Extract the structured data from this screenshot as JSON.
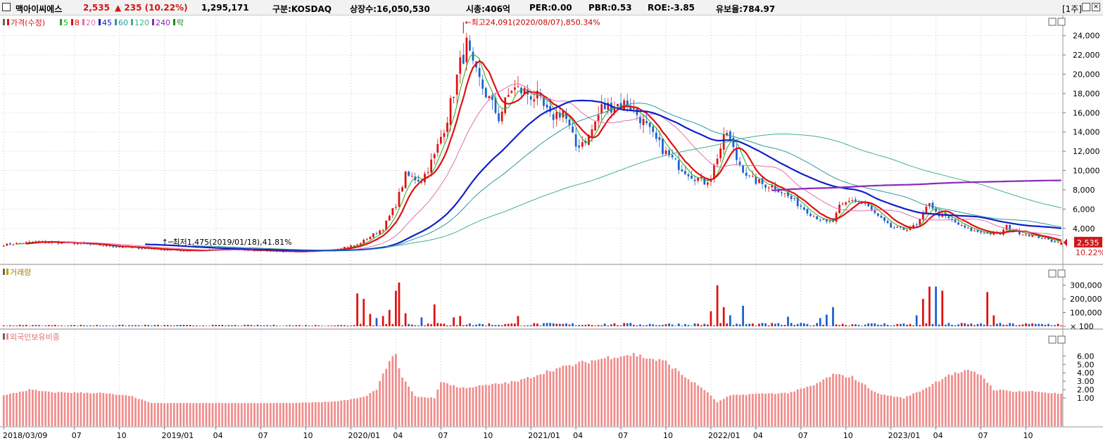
{
  "header": {
    "name": "맥아이씨에스",
    "price": "2,535",
    "change": "▲ 235 (10.22%)",
    "volume": "1,295,171",
    "market": "구분:KOSDAQ",
    "shares": "상장수:16,050,530",
    "mcap": "시총:406억",
    "per": "PER:0.00",
    "pbr": "PBR:0.53",
    "roe": "ROE:-3.85",
    "reserve": "유보율:784.97",
    "period": "[1주]"
  },
  "legend": {
    "price": "가격(수정)",
    "ma": [
      "5",
      "8",
      "20",
      "45",
      "60",
      "120",
      "240"
    ],
    "fall": "락",
    "volume": "거래량",
    "foreign": "외국인보유비중"
  },
  "annotations": {
    "high": "최고24,091(2020/08/07),850.34%",
    "low": "최저1,475(2019/01/18),41.81%"
  },
  "last": {
    "price": "2,535",
    "pct": "10.22%"
  },
  "colors": {
    "up": "#e01010",
    "down": "#1a5fd0",
    "ma5": "#22a822",
    "ma8": "#e01010",
    "ma20": "#e070b0",
    "ma45": "#1020c8",
    "ma60": "#2a9aa0",
    "ma120": "#40b090",
    "ma240": "#8a2ab8",
    "foreign": "#f08c8c",
    "grid": "#c8c8c8"
  },
  "chart_data": [
    {
      "type": "candlestick",
      "title": "맥아이씨에스",
      "y_ticks": [
        4000,
        6000,
        8000,
        10000,
        12000,
        14000,
        16000,
        18000,
        20000,
        22000,
        24000
      ],
      "y_tick_labels": [
        "4,000",
        "6,000",
        "8,000",
        "10,000",
        "12,000",
        "14,000",
        "16,000",
        "18,000",
        "20,000",
        "22,000",
        "24,000"
      ],
      "ylim": [
        700,
        25800
      ],
      "x_labels": [
        "2018/03/09",
        "07",
        "10",
        "2019/01",
        "04",
        "07",
        "10",
        "2020/01",
        "04",
        "07",
        "10",
        "2021/01",
        "04",
        "07",
        "10",
        "2022/01",
        "04",
        "07",
        "10",
        "2023/01",
        "04",
        "07",
        "10"
      ],
      "close_trend": [
        [
          0,
          2300
        ],
        [
          10,
          2600
        ],
        [
          20,
          2500
        ],
        [
          40,
          2000
        ],
        [
          55,
          1700
        ],
        [
          70,
          1800
        ],
        [
          90,
          1600
        ],
        [
          100,
          1700
        ],
        [
          110,
          2300
        ],
        [
          118,
          4000
        ],
        [
          122,
          6500
        ],
        [
          125,
          9500
        ],
        [
          130,
          9000
        ],
        [
          134,
          11500
        ],
        [
          138,
          15500
        ],
        [
          142,
          21000
        ],
        [
          144,
          23000
        ],
        [
          146,
          20500
        ],
        [
          150,
          18000
        ],
        [
          154,
          15500
        ],
        [
          158,
          18500
        ],
        [
          162,
          18200
        ],
        [
          166,
          17500
        ],
        [
          170,
          15500
        ],
        [
          174,
          16200
        ],
        [
          178,
          12500
        ],
        [
          182,
          13500
        ],
        [
          186,
          16500
        ],
        [
          190,
          16800
        ],
        [
          194,
          17000
        ],
        [
          198,
          15500
        ],
        [
          202,
          13500
        ],
        [
          206,
          11800
        ],
        [
          210,
          10500
        ],
        [
          214,
          9500
        ],
        [
          218,
          8800
        ],
        [
          220,
          9300
        ],
        [
          222,
          11500
        ],
        [
          225,
          14000
        ],
        [
          228,
          11200
        ],
        [
          232,
          9200
        ],
        [
          236,
          8600
        ],
        [
          240,
          8300
        ],
        [
          244,
          7300
        ],
        [
          248,
          6300
        ],
        [
          252,
          5300
        ],
        [
          256,
          4600
        ],
        [
          258,
          4700
        ],
        [
          260,
          6200
        ],
        [
          264,
          7000
        ],
        [
          268,
          6500
        ],
        [
          272,
          5200
        ],
        [
          276,
          4100
        ],
        [
          280,
          3900
        ],
        [
          284,
          4300
        ],
        [
          286,
          5400
        ],
        [
          288,
          6800
        ],
        [
          290,
          5600
        ],
        [
          294,
          5000
        ],
        [
          298,
          4200
        ],
        [
          302,
          3700
        ],
        [
          306,
          3500
        ],
        [
          310,
          3400
        ],
        [
          312,
          4200
        ],
        [
          314,
          3700
        ],
        [
          318,
          3400
        ],
        [
          322,
          3100
        ],
        [
          326,
          2700
        ],
        [
          329,
          2535
        ]
      ],
      "high": {
        "value": 24091,
        "date": "2020/08/07"
      },
      "low": {
        "value": 1475,
        "date": "2019/01/18"
      },
      "last_close": 2535,
      "moving_averages": [
        "5",
        "8",
        "20",
        "45",
        "60",
        "120",
        "240"
      ]
    },
    {
      "type": "bar",
      "title": "거래량",
      "y_ticks": [
        100,
        100000,
        200000,
        300000
      ],
      "y_tick_labels": [
        "× 100",
        "100,000",
        "200,000",
        "300,000"
      ],
      "ylim": [
        0,
        360000
      ],
      "spikes": [
        [
          110,
          240000
        ],
        [
          112,
          200000
        ],
        [
          114,
          90000
        ],
        [
          116,
          60000
        ],
        [
          118,
          75000
        ],
        [
          120,
          120000
        ],
        [
          122,
          260000
        ],
        [
          123,
          320000
        ],
        [
          125,
          95000
        ],
        [
          130,
          65000
        ],
        [
          134,
          160000
        ],
        [
          140,
          65000
        ],
        [
          142,
          75000
        ],
        [
          160,
          75000
        ],
        [
          220,
          110000
        ],
        [
          222,
          300000
        ],
        [
          224,
          140000
        ],
        [
          226,
          80000
        ],
        [
          230,
          150000
        ],
        [
          244,
          70000
        ],
        [
          254,
          60000
        ],
        [
          256,
          85000
        ],
        [
          258,
          140000
        ],
        [
          284,
          80000
        ],
        [
          286,
          200000
        ],
        [
          288,
          290000
        ],
        [
          290,
          290000
        ],
        [
          292,
          260000
        ],
        [
          306,
          250000
        ],
        [
          308,
          80000
        ]
      ]
    },
    {
      "type": "bar",
      "title": "외국인보유비중",
      "y_ticks": [
        1,
        2,
        3,
        4,
        5,
        6
      ],
      "y_tick_labels": [
        "1.00",
        "2.00",
        "3.00",
        "4.00",
        "5.00",
        "6.00"
      ],
      "ylim": [
        0,
        7.2
      ],
      "trend": [
        [
          0,
          1.3
        ],
        [
          8,
          2.0
        ],
        [
          14,
          1.7
        ],
        [
          30,
          1.6
        ],
        [
          40,
          1.2
        ],
        [
          46,
          0.4
        ],
        [
          70,
          0.4
        ],
        [
          90,
          0.4
        ],
        [
          104,
          0.6
        ],
        [
          112,
          1.1
        ],
        [
          116,
          2.0
        ],
        [
          120,
          5.6
        ],
        [
          122,
          6.0
        ],
        [
          124,
          3.5
        ],
        [
          128,
          1.2
        ],
        [
          134,
          1.0
        ],
        [
          136,
          3.0
        ],
        [
          142,
          2.2
        ],
        [
          150,
          2.5
        ],
        [
          160,
          3.0
        ],
        [
          170,
          4.3
        ],
        [
          180,
          5.2
        ],
        [
          190,
          6.0
        ],
        [
          196,
          6.2
        ],
        [
          200,
          5.8
        ],
        [
          206,
          5.3
        ],
        [
          212,
          3.5
        ],
        [
          218,
          2.0
        ],
        [
          222,
          0.5
        ],
        [
          226,
          1.3
        ],
        [
          234,
          1.5
        ],
        [
          244,
          1.6
        ],
        [
          252,
          2.5
        ],
        [
          258,
          3.8
        ],
        [
          264,
          3.5
        ],
        [
          272,
          1.5
        ],
        [
          280,
          1.0
        ],
        [
          286,
          2.0
        ],
        [
          294,
          3.8
        ],
        [
          300,
          4.2
        ],
        [
          304,
          3.8
        ],
        [
          308,
          2.0
        ],
        [
          314,
          1.8
        ],
        [
          320,
          1.8
        ],
        [
          329,
          1.5
        ]
      ]
    }
  ]
}
